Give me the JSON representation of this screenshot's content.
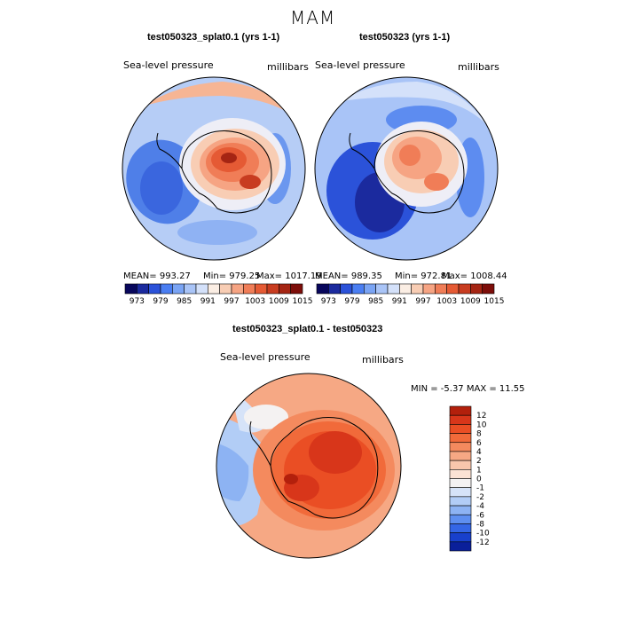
{
  "figure": {
    "season": "MAM"
  },
  "chart_data": [
    {
      "type": "contour-map",
      "title": "test050323_splat0.1 (yrs 1-1)",
      "variable": "Sea-level pressure",
      "units": "millibars",
      "projection": "polar-stereographic, south pole",
      "stats": {
        "mean_label": "MEAN= 993.27",
        "min_label": "Min= 979.25",
        "max_label": "Max= 1017.19",
        "mean": 993.27,
        "min": 979.25,
        "max": 1017.19
      },
      "colorbar_ticks": [
        "973",
        "979",
        "985",
        "991",
        "997",
        "1003",
        "1009",
        "1015"
      ],
      "colorbar_colors": [
        "#08075c",
        "#1b2a9e",
        "#2b52d9",
        "#4a7ef2",
        "#7aa4f4",
        "#a9c4f7",
        "#d4e1fa",
        "#fbeee4",
        "#f8cdb4",
        "#f6a483",
        "#f07d57",
        "#e55a34",
        "#c83c20",
        "#a52513",
        "#7d0e0a"
      ]
    },
    {
      "type": "contour-map",
      "title": "test050323 (yrs 1-1)",
      "variable": "Sea-level pressure",
      "units": "millibars",
      "projection": "polar-stereographic, south pole",
      "stats": {
        "mean_label": "MEAN= 989.35",
        "min_label": "Min= 972.81",
        "max_label": "Max= 1008.44",
        "mean": 989.35,
        "min": 972.81,
        "max": 1008.44
      },
      "colorbar_ticks": [
        "973",
        "979",
        "985",
        "991",
        "997",
        "1003",
        "1009",
        "1015"
      ],
      "colorbar_colors": [
        "#08075c",
        "#1b2a9e",
        "#2b52d9",
        "#4a7ef2",
        "#7aa4f4",
        "#a9c4f7",
        "#d4e1fa",
        "#fbeee4",
        "#f8cdb4",
        "#f6a483",
        "#f07d57",
        "#e55a34",
        "#c83c20",
        "#a52513",
        "#7d0e0a"
      ]
    },
    {
      "type": "contour-map",
      "title": "test050323_splat0.1 - test050323",
      "variable": "Sea-level pressure",
      "units": "millibars",
      "projection": "polar-stereographic, south pole",
      "stats": {
        "minmax_label": "MIN =  -5.37 MAX =  11.55",
        "min": -5.37,
        "max": 11.55
      },
      "colorbar_ticks": [
        "12",
        "10",
        "8",
        "6",
        "4",
        "2",
        "1",
        "0",
        "-1",
        "-2",
        "-4",
        "-6",
        "-8",
        "-10",
        "-12"
      ],
      "colorbar_colors": [
        "#b3200c",
        "#d8361a",
        "#ea4e24",
        "#f16a3a",
        "#f48a5e",
        "#f6a884",
        "#f8c6ac",
        "#fbe2d4",
        "#f4f2f2",
        "#d6e3f8",
        "#b2cdf6",
        "#8db3f3",
        "#5e8ff0",
        "#3466e6",
        "#1840cc",
        "#0a1f9a"
      ]
    }
  ]
}
